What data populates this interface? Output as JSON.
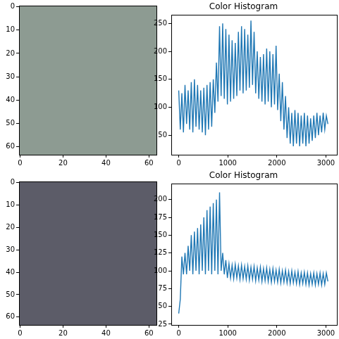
{
  "chart_data": [
    {
      "type": "image",
      "xlim": [
        -0.5,
        63.5
      ],
      "ylim": [
        63.5,
        -0.5
      ],
      "xticks": [
        0,
        20,
        40,
        60
      ],
      "yticks": [
        0,
        10,
        20,
        30,
        40,
        50,
        60
      ]
    },
    {
      "type": "line",
      "title": "Color Histogram",
      "color": "#1f77b4",
      "xlim": [
        -152,
        3223
      ],
      "ylim": [
        15,
        265
      ],
      "xticks": [
        0,
        1000,
        2000,
        3000
      ],
      "yticks": [
        50,
        100,
        150,
        200,
        250
      ],
      "x": [
        0,
        32,
        64,
        96,
        128,
        160,
        192,
        224,
        256,
        288,
        320,
        352,
        384,
        416,
        448,
        480,
        512,
        544,
        576,
        608,
        640,
        672,
        704,
        736,
        768,
        800,
        832,
        864,
        896,
        928,
        960,
        992,
        1024,
        1056,
        1088,
        1120,
        1152,
        1184,
        1216,
        1248,
        1280,
        1312,
        1344,
        1376,
        1408,
        1440,
        1472,
        1504,
        1536,
        1568,
        1600,
        1632,
        1664,
        1696,
        1728,
        1760,
        1792,
        1824,
        1856,
        1888,
        1920,
        1952,
        1984,
        2016,
        2048,
        2080,
        2112,
        2144,
        2176,
        2208,
        2240,
        2272,
        2304,
        2336,
        2368,
        2400,
        2432,
        2464,
        2496,
        2528,
        2560,
        2592,
        2624,
        2656,
        2688,
        2720,
        2752,
        2784,
        2816,
        2848,
        2880,
        2912,
        2944,
        2976,
        3008,
        3040
      ],
      "values": [
        130,
        60,
        125,
        55,
        140,
        70,
        130,
        60,
        145,
        55,
        150,
        65,
        140,
        60,
        130,
        55,
        135,
        50,
        140,
        60,
        145,
        65,
        150,
        90,
        180,
        110,
        245,
        120,
        250,
        115,
        240,
        105,
        230,
        110,
        220,
        115,
        215,
        120,
        235,
        130,
        245,
        125,
        240,
        130,
        230,
        135,
        255,
        140,
        235,
        125,
        200,
        115,
        190,
        110,
        195,
        105,
        205,
        110,
        200,
        100,
        195,
        105,
        210,
        95,
        160,
        75,
        145,
        60,
        120,
        45,
        100,
        35,
        90,
        30,
        95,
        35,
        90,
        30,
        85,
        35,
        90,
        30,
        85,
        35,
        80,
        40,
        85,
        45,
        90,
        50,
        85,
        55,
        90,
        60,
        85,
        70
      ]
    },
    {
      "type": "image",
      "xlim": [
        -0.5,
        63.5
      ],
      "ylim": [
        63.5,
        -0.5
      ],
      "xticks": [
        0,
        20,
        40,
        60
      ],
      "yticks": [
        0,
        10,
        20,
        30,
        40,
        50,
        60
      ]
    },
    {
      "type": "line",
      "title": "Color Histogram",
      "color": "#1f77b4",
      "xlim": [
        -152,
        3223
      ],
      "ylim": [
        24,
        222
      ],
      "xticks": [
        0,
        1000,
        2000,
        3000
      ],
      "yticks": [
        25,
        50,
        75,
        100,
        125,
        150,
        175,
        200
      ],
      "x": [
        0,
        32,
        64,
        96,
        128,
        160,
        192,
        224,
        256,
        288,
        320,
        352,
        384,
        416,
        448,
        480,
        512,
        544,
        576,
        608,
        640,
        672,
        704,
        736,
        768,
        800,
        832,
        864,
        896,
        928,
        960,
        992,
        1024,
        1056,
        1088,
        1120,
        1152,
        1184,
        1216,
        1248,
        1280,
        1312,
        1344,
        1376,
        1408,
        1440,
        1472,
        1504,
        1536,
        1568,
        1600,
        1632,
        1664,
        1696,
        1728,
        1760,
        1792,
        1824,
        1856,
        1888,
        1920,
        1952,
        1984,
        2016,
        2048,
        2080,
        2112,
        2144,
        2176,
        2208,
        2240,
        2272,
        2304,
        2336,
        2368,
        2400,
        2432,
        2464,
        2496,
        2528,
        2560,
        2592,
        2624,
        2656,
        2688,
        2720,
        2752,
        2784,
        2816,
        2848,
        2880,
        2912,
        2944,
        2976,
        3008,
        3040
      ],
      "values": [
        40,
        60,
        120,
        95,
        125,
        95,
        135,
        100,
        150,
        95,
        155,
        100,
        160,
        95,
        165,
        100,
        175,
        95,
        185,
        100,
        190,
        95,
        195,
        100,
        200,
        95,
        210,
        100,
        125,
        95,
        115,
        90,
        110,
        90,
        108,
        89,
        109,
        90,
        107,
        88,
        108,
        89,
        106,
        88,
        107,
        87,
        105,
        88,
        106,
        86,
        104,
        87,
        105,
        85,
        103,
        86,
        104,
        85,
        102,
        84,
        103,
        85,
        101,
        84,
        102,
        83,
        100,
        84,
        101,
        83,
        99,
        82,
        100,
        83,
        98,
        82,
        99,
        81,
        97,
        82,
        98,
        81,
        97,
        80,
        96,
        81,
        97,
        80,
        96,
        81,
        97,
        80,
        96,
        81,
        97,
        85
      ]
    }
  ]
}
